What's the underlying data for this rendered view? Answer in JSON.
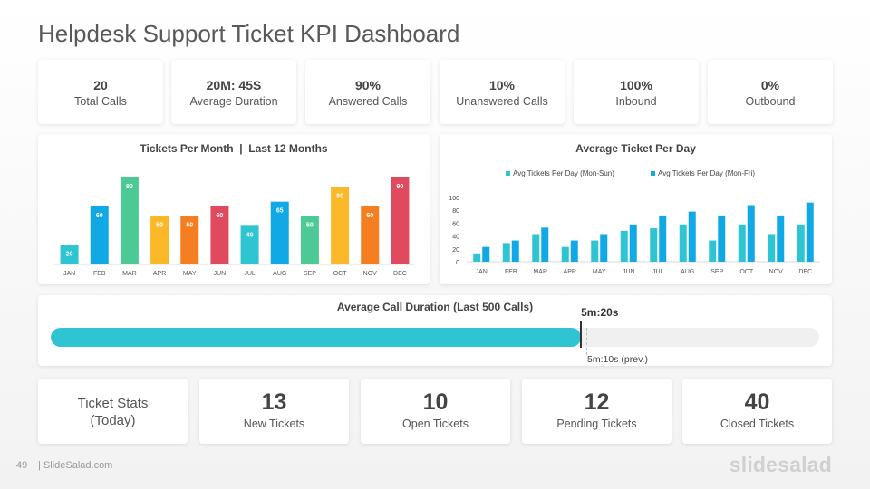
{
  "page": {
    "title": "Helpdesk Support Ticket KPI Dashboard",
    "page_number": "49",
    "site": "| SlideSalad.com",
    "brand": "slidesalad"
  },
  "kpis": [
    {
      "value": "20",
      "label": "Total Calls"
    },
    {
      "value": "20M: 45S",
      "label": "Average Duration"
    },
    {
      "value": "90%",
      "label": "Answered Calls"
    },
    {
      "value": "10%",
      "label": "Unanswered Calls"
    },
    {
      "value": "100%",
      "label": "Inbound"
    },
    {
      "value": "0%",
      "label": "Outbound"
    }
  ],
  "chart_data": [
    {
      "type": "bar",
      "title": "Tickets Per Month  |  Last 12 Months",
      "categories": [
        "JAN",
        "FEB",
        "MAR",
        "APR",
        "MAY",
        "JUN",
        "JUL",
        "AUG",
        "SEP",
        "OCT",
        "NOV",
        "DEC"
      ],
      "values": [
        20,
        60,
        90,
        50,
        50,
        60,
        40,
        65,
        50,
        80,
        60,
        90
      ],
      "colors": [
        "#2ec4d2",
        "#11a8e6",
        "#4cc995",
        "#fbb829",
        "#f57e20",
        "#e04a5e",
        "#2ec4d2",
        "#11a8e6",
        "#4cc995",
        "#fbb829",
        "#f57e20",
        "#e04a5e"
      ],
      "ylim": [
        0,
        90
      ],
      "data_labels": true,
      "grid": false
    },
    {
      "type": "bar",
      "title": "Average Ticket Per Day",
      "categories": [
        "JAN",
        "FEB",
        "MAR",
        "APR",
        "MAY",
        "JUN",
        "JUL",
        "AUG",
        "SEP",
        "OCT",
        "NOV",
        "DEC"
      ],
      "series": [
        {
          "name": "Avg Tickets Per Day (Mon-Sun)",
          "color": "#2ec4d2",
          "values": [
            13,
            29,
            43,
            23,
            33,
            48,
            52,
            58,
            33,
            58,
            43,
            58
          ]
        },
        {
          "name": "Avg Tickets Per Day (Mon-Fri)",
          "color": "#11a8e6",
          "values": [
            23,
            33,
            53,
            33,
            43,
            58,
            72,
            78,
            72,
            88,
            72,
            92
          ]
        }
      ],
      "yticks": [
        "100",
        "80",
        "60",
        "40",
        "20",
        "0"
      ],
      "ylim": [
        0,
        100
      ],
      "legend": "top",
      "grid": false
    }
  ],
  "duration": {
    "title": "Average Call Duration (Last 500 Calls)",
    "current_label": "5m:20s",
    "previous_label": "5m:10s (prev.)",
    "current_fraction": 0.69,
    "previous_fraction": 0.697
  },
  "stats": {
    "heading": "Ticket Stats\n(Today)",
    "heading_line1": "Ticket Stats",
    "heading_line2": "(Today)",
    "items": [
      {
        "value": "13",
        "label": "New Tickets"
      },
      {
        "value": "10",
        "label": "Open Tickets"
      },
      {
        "value": "12",
        "label": "Pending Tickets"
      },
      {
        "value": "40",
        "label": "Closed Tickets"
      }
    ]
  }
}
